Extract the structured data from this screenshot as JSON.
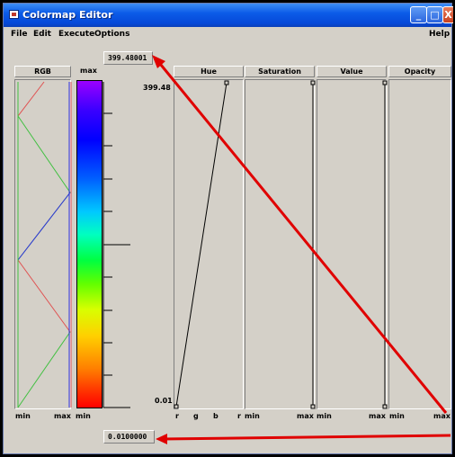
{
  "window": {
    "title": "Colormap Editor",
    "controls": {
      "minimize": "_",
      "maximize": "□",
      "close": "X"
    }
  },
  "menubar": {
    "items": [
      {
        "label": "File",
        "key": "F"
      },
      {
        "label": "Edit",
        "key": "E"
      },
      {
        "label": "Execute",
        "key": "x"
      },
      {
        "label": "Options",
        "key": "O"
      }
    ],
    "help": "Help"
  },
  "fields": {
    "max_value": "399.48001",
    "min_value": "0.0100000"
  },
  "left_panel": {
    "rgb_header": "RGB",
    "max_header": "max",
    "bottom_labels": [
      "min",
      "max",
      "min"
    ]
  },
  "scale": {
    "top": "399.48",
    "bottom": "0.01"
  },
  "columns": [
    {
      "header": "Hue",
      "bottom_labels": [
        "r",
        "g",
        "b",
        "r"
      ]
    },
    {
      "header": "Saturation",
      "bottom_labels": [
        "min",
        "max"
      ]
    },
    {
      "header": "Value",
      "bottom_labels": [
        "min",
        "max"
      ]
    },
    {
      "header": "Opacity",
      "bottom_labels": [
        "min",
        "max"
      ]
    }
  ],
  "colors": {
    "annotation_arrow": "#e00000",
    "red_line": "#e05050",
    "green_line": "#40c040",
    "blue_line": "#3030e0"
  },
  "icons": [
    "app-icon",
    "minimize-icon",
    "maximize-icon",
    "close-icon",
    "arrow-icon"
  ]
}
